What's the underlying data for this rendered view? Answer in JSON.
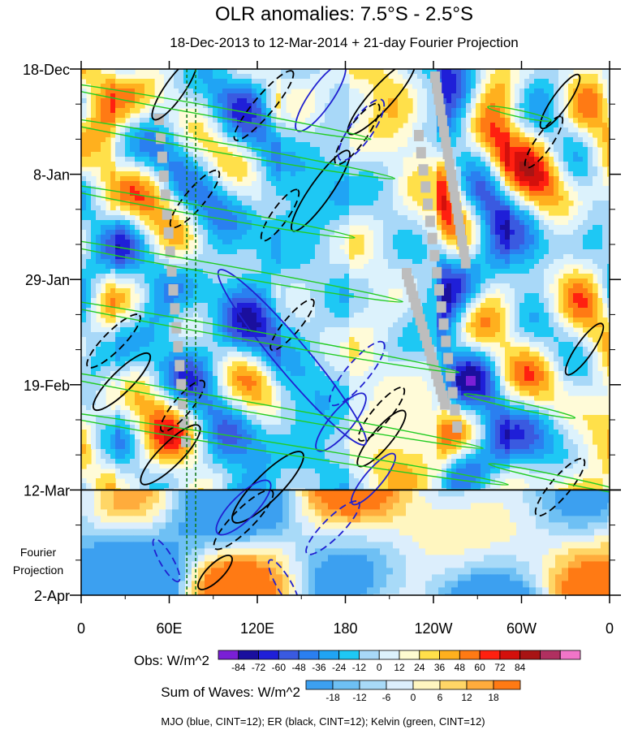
{
  "chart_data": {
    "type": "heatmap",
    "title": "OLR anomalies: 7.5°S - 2.5°S",
    "subtitle": "18-Dec-2013 to 12-Mar-2014 + 21-day Fourier Projection",
    "x_ticks": [
      "0",
      "60E",
      "120E",
      "180",
      "120W",
      "60W",
      "0"
    ],
    "x_range_deg_east": [
      0,
      360
    ],
    "y_ticks": [
      "18-Dec",
      "8-Jan",
      "29-Jan",
      "19-Feb",
      "12-Mar",
      "2-Apr"
    ],
    "y_time_range": [
      "2013-12-18",
      "2014-04-02"
    ],
    "observation_end": "2014-03-12",
    "projection_label": [
      "Fourier",
      "Projection"
    ],
    "reference_lines_deg_east": [
      72,
      78
    ],
    "obs_colorbar": {
      "label": "Obs: W/m^2",
      "levels": [
        "-84",
        "-72",
        "-60",
        "-48",
        "-36",
        "-24",
        "-12",
        "0",
        "12",
        "24",
        "36",
        "48",
        "60",
        "72",
        "84"
      ],
      "colors": [
        "#7a1fd6",
        "#1a0f9e",
        "#1f1fd8",
        "#3a5ae0",
        "#2a7ff0",
        "#20a4f4",
        "#1ec8f4",
        "#a8d8f8",
        "#dcf2fc",
        "#fffcd0",
        "#ffe04a",
        "#ffb01e",
        "#ff7a14",
        "#ff2010",
        "#d4100c",
        "#a81414",
        "#b03060",
        "#f075c8"
      ]
    },
    "waves_colorbar": {
      "label": "Sum of Waves: W/m^2",
      "levels": [
        "-18",
        "-12",
        "-6",
        "0",
        "6",
        "12",
        "18"
      ],
      "colors": [
        "#3ca0f0",
        "#6ec0f4",
        "#a8daf8",
        "#dceefc",
        "#fff6c0",
        "#ffd666",
        "#ffac3c",
        "#ff7a14"
      ]
    },
    "series_contours": [
      {
        "name": "MJO",
        "color": "#2020d0",
        "cint": 12
      },
      {
        "name": "ER",
        "color": "#000000",
        "cint": 12
      },
      {
        "name": "Kelvin",
        "color": "#22cc22",
        "cint": 12
      }
    ],
    "footer": "MJO (blue, CINT=12); ER (black, CINT=12); Kelvin (green, CINT=12)"
  }
}
